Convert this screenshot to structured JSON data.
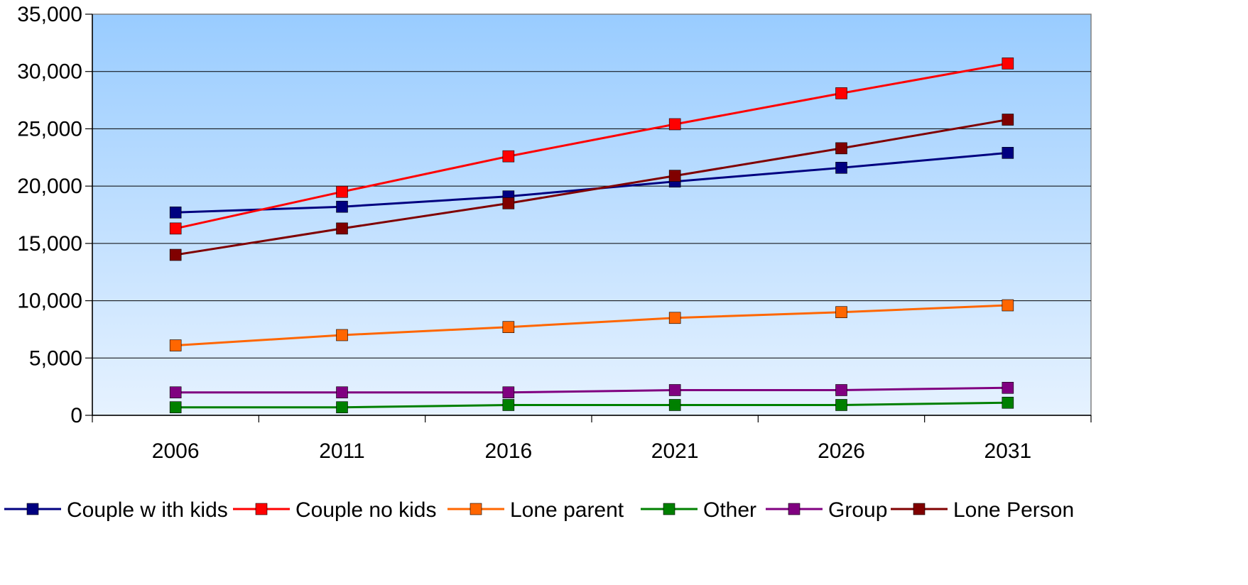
{
  "chart_data": {
    "type": "line",
    "categories": [
      "2006",
      "2011",
      "2016",
      "2021",
      "2026",
      "2031"
    ],
    "ylim": [
      0,
      35000
    ],
    "yticks": [
      0,
      5000,
      10000,
      15000,
      20000,
      25000,
      30000,
      35000
    ],
    "ytick_labels": [
      "0",
      "5,000",
      "10,000",
      "15,000",
      "20,000",
      "25,000",
      "30,000",
      "35,000"
    ],
    "grid": true,
    "legend_position": "bottom",
    "plot_background": [
      "#99ccff",
      "#e6f2ff"
    ],
    "series": [
      {
        "name": "Couple w ith kids",
        "color": "#000080",
        "values": [
          17700,
          18200,
          19100,
          20400,
          21600,
          22900
        ]
      },
      {
        "name": "Couple no kids",
        "color": "#ff0000",
        "values": [
          16300,
          19500,
          22600,
          25400,
          28100,
          30700
        ]
      },
      {
        "name": "Lone parent",
        "color": "#ff6600",
        "values": [
          6100,
          7000,
          7700,
          8500,
          9000,
          9600
        ]
      },
      {
        "name": "Other",
        "color": "#008000",
        "values": [
          700,
          700,
          900,
          900,
          900,
          1100
        ]
      },
      {
        "name": "Group",
        "color": "#800080",
        "values": [
          2000,
          2000,
          2000,
          2200,
          2200,
          2400
        ]
      },
      {
        "name": "Lone Person",
        "color": "#800000",
        "values": [
          14000,
          16300,
          18500,
          20900,
          23300,
          25800
        ]
      }
    ]
  }
}
